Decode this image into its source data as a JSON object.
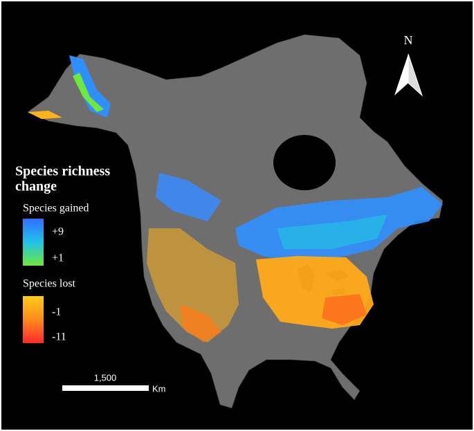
{
  "legend": {
    "title_line1": "Species richness",
    "title_line2": "change",
    "gained": {
      "label": "Species gained",
      "max": "+9",
      "min": "+1"
    },
    "lost": {
      "label": "Species lost",
      "max": "-1",
      "min": "-11"
    }
  },
  "scale_bar": {
    "distance": "1,500",
    "unit": "Km"
  },
  "north_arrow": {
    "label": "N"
  }
}
